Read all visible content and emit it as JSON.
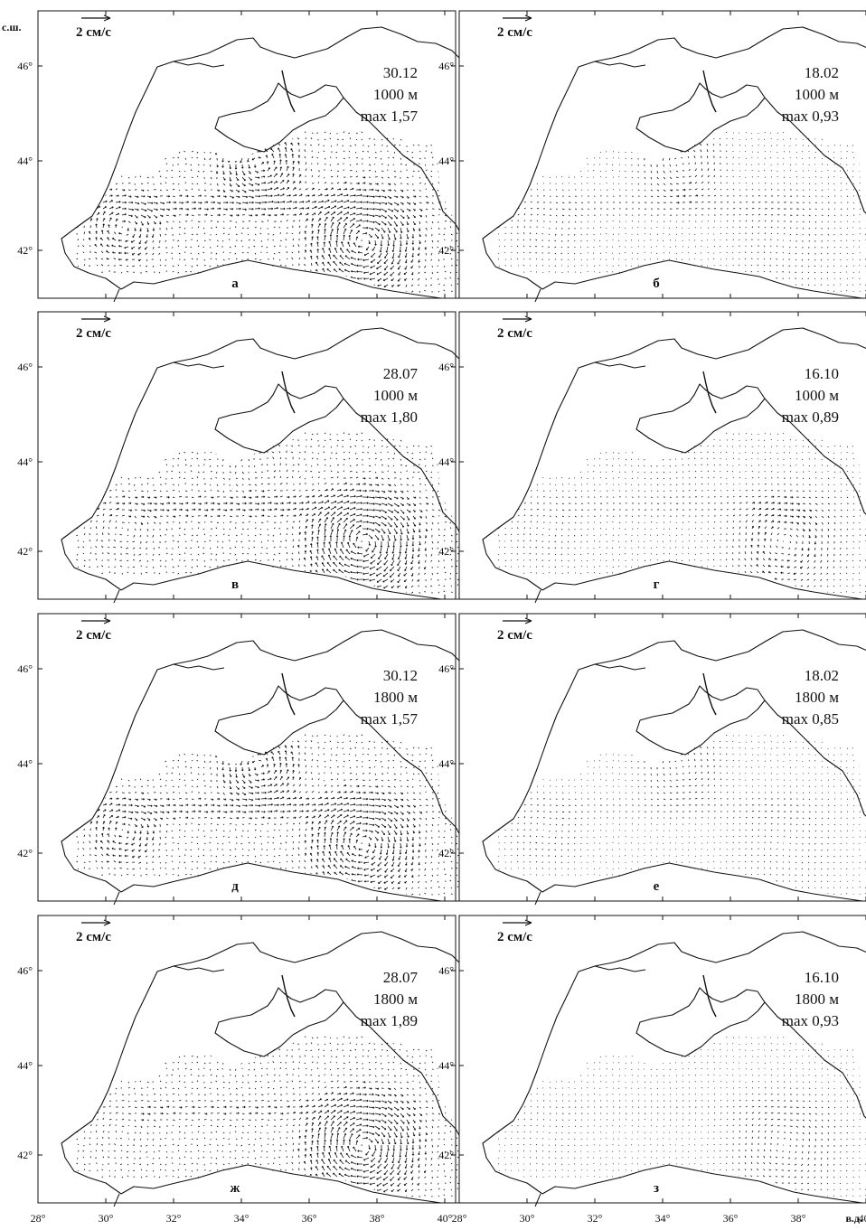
{
  "axes": {
    "lat_unit": "с.ш.",
    "lon_unit": "в.д.",
    "lat_ticks": [
      "46°",
      "44°",
      "42°"
    ],
    "lon_ticks": [
      "28°",
      "30°",
      "32°",
      "34°",
      "36°",
      "38°",
      "40°"
    ]
  },
  "scale_label": "2 см/с",
  "panels": [
    {
      "letter": "а",
      "date": "30.12",
      "depth": "1000 м",
      "max": "max 1,57"
    },
    {
      "letter": "б",
      "date": "18.02",
      "depth": "1000 м",
      "max": "max 0,93"
    },
    {
      "letter": "в",
      "date": "28.07",
      "depth": "1000 м",
      "max": "max 1,80"
    },
    {
      "letter": "г",
      "date": "16.10",
      "depth": "1000 м",
      "max": "max 0,89"
    },
    {
      "letter": "д",
      "date": "30.12",
      "depth": "1800 м",
      "max": "max 1,57"
    },
    {
      "letter": "е",
      "date": "18.02",
      "depth": "1800 м",
      "max": "max 0,85"
    },
    {
      "letter": "ж",
      "date": "28.07",
      "depth": "1800 м",
      "max": "max 1,89"
    },
    {
      "letter": "з",
      "date": "16.10",
      "depth": "1800 м",
      "max": "max 0,93"
    }
  ],
  "colors": {
    "ink": "#111111",
    "background": "#ffffff"
  }
}
